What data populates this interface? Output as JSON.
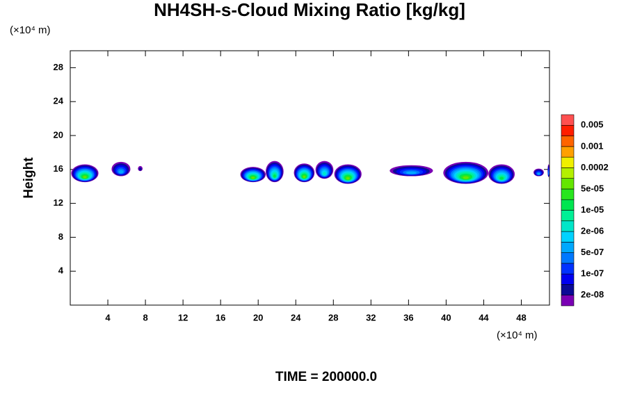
{
  "chart_data": {
    "type": "contour",
    "title": "NH4SH-s-Cloud Mixing Ratio [kg/kg]",
    "y_unit": "(×10⁴ m)",
    "x_unit": "(×10⁴ m)",
    "ylabel": "Height",
    "footer": "TIME = 200000.0",
    "xlim": [
      0,
      51
    ],
    "xticks": [
      4,
      8,
      12,
      16,
      20,
      24,
      28,
      32,
      36,
      40,
      44,
      48
    ],
    "ylim": [
      0,
      30
    ],
    "yticks": [
      4,
      8,
      12,
      16,
      20,
      24,
      28
    ],
    "colorbar": {
      "colors": [
        "#7a00b4",
        "#0a0a96",
        "#0000f0",
        "#0032ff",
        "#0078ff",
        "#00a8ff",
        "#00d2ff",
        "#00e6c8",
        "#00f096",
        "#00e650",
        "#28e61e",
        "#64e600",
        "#b4f000",
        "#f0f000",
        "#ffa000",
        "#ff6400",
        "#ff1e00",
        "#ff5050",
        "#ff9c9c"
      ],
      "ticks": [
        {
          "value": 2e-08,
          "label": "2e-08"
        },
        {
          "value": 1e-07,
          "label": "1e-07"
        },
        {
          "value": 5e-07,
          "label": "5e-07"
        },
        {
          "value": 2e-06,
          "label": "2e-06"
        },
        {
          "value": 1e-05,
          "label": "1e-05"
        },
        {
          "value": 5e-05,
          "label": "5e-05"
        },
        0.0002,
        0.001,
        0.005
      ]
    },
    "blobs": [
      {
        "x": [
          0.1,
          3.0
        ],
        "y": [
          14.5,
          16.6
        ],
        "max": 5e-05
      },
      {
        "x": [
          4.4,
          6.4
        ],
        "y": [
          15.2,
          16.9
        ],
        "max": 5e-07
      },
      {
        "x": [
          7.2,
          7.7
        ],
        "y": [
          15.8,
          16.4
        ],
        "max": 2e-08
      },
      {
        "x": [
          18.1,
          20.8
        ],
        "y": [
          14.5,
          16.3
        ],
        "max": 5e-05
      },
      {
        "x": [
          20.8,
          22.7
        ],
        "y": [
          14.5,
          17.0
        ],
        "max": 1e-05
      },
      {
        "x": [
          23.8,
          26.0
        ],
        "y": [
          14.5,
          16.7
        ],
        "max": 5e-05
      },
      {
        "x": [
          26.1,
          28.0
        ],
        "y": [
          14.9,
          17.0
        ],
        "max": 2e-06
      },
      {
        "x": [
          28.1,
          31.0
        ],
        "y": [
          14.3,
          16.6
        ],
        "max": 5e-05
      },
      {
        "x": [
          34.0,
          38.6
        ],
        "y": [
          15.2,
          16.5
        ],
        "max": 5e-07
      },
      {
        "x": [
          39.7,
          44.5
        ],
        "y": [
          14.3,
          16.9
        ],
        "max": 5e-05
      },
      {
        "x": [
          44.5,
          47.3
        ],
        "y": [
          14.3,
          16.6
        ],
        "max": 1e-05
      },
      {
        "x": [
          49.3,
          50.4
        ],
        "y": [
          15.2,
          16.1
        ],
        "max": 5e-07
      },
      {
        "x": [
          50.8,
          51.0
        ],
        "y": [
          15.1,
          16.6
        ],
        "max": 5e-07
      }
    ]
  }
}
